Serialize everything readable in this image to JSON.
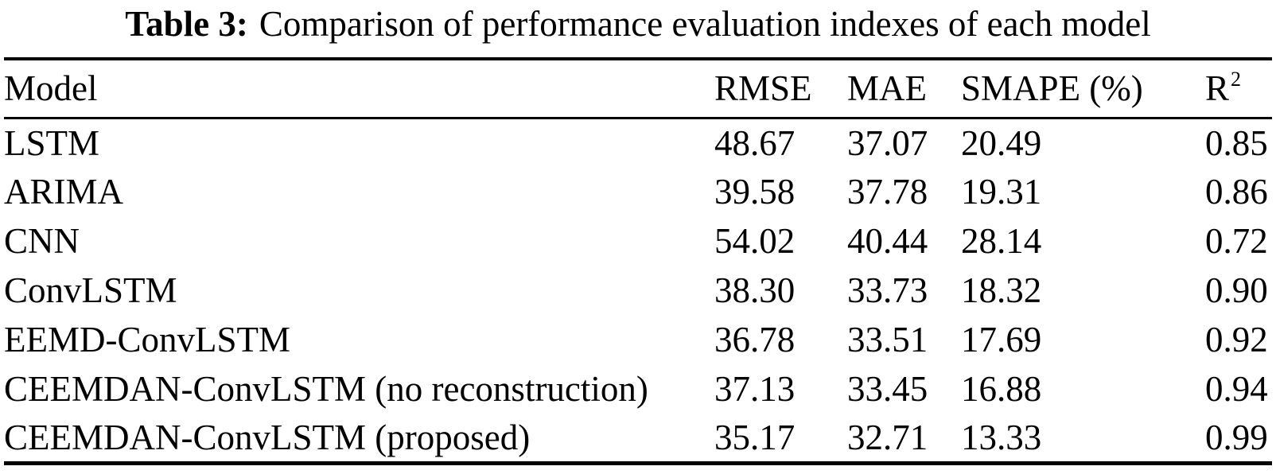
{
  "caption": {
    "label": "Table 3:",
    "text": "Comparison of performance evaluation indexes of each model"
  },
  "colors": {
    "background": "#ffffff",
    "text": "#000000",
    "rule": "#000000"
  },
  "table": {
    "header": {
      "model": "Model",
      "rmse": "RMSE",
      "mae": "MAE",
      "smape": "SMAPE (%)",
      "r_base": "R",
      "r_sup": "2"
    },
    "rows": [
      {
        "model": "LSTM",
        "rmse": "48.67",
        "mae": "37.07",
        "smape": "20.49",
        "r2": "0.85"
      },
      {
        "model": "ARIMA",
        "rmse": "39.58",
        "mae": "37.78",
        "smape": "19.31",
        "r2": "0.86"
      },
      {
        "model": "CNN",
        "rmse": "54.02",
        "mae": "40.44",
        "smape": "28.14",
        "r2": "0.72"
      },
      {
        "model": "ConvLSTM",
        "rmse": "38.30",
        "mae": "33.73",
        "smape": "18.32",
        "r2": "0.90"
      },
      {
        "model": "EEMD-ConvLSTM",
        "rmse": "36.78",
        "mae": "33.51",
        "smape": "17.69",
        "r2": "0.92"
      },
      {
        "model": "CEEMDAN-ConvLSTM (no reconstruction)",
        "rmse": "37.13",
        "mae": "33.45",
        "smape": "16.88",
        "r2": "0.94"
      },
      {
        "model": "CEEMDAN-ConvLSTM (proposed)",
        "rmse": "35.17",
        "mae": "32.71",
        "smape": "13.33",
        "r2": "0.99"
      }
    ]
  }
}
